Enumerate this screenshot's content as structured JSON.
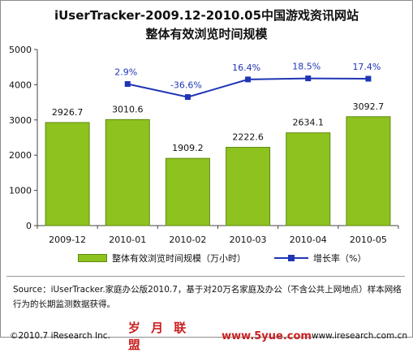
{
  "title_line1": "iUserTracker-2009.12-2010.05中国游戏资讯网站",
  "title_line2": "整体有效浏览时间规模",
  "chart_data": {
    "type": "bar",
    "categories": [
      "2009-12",
      "2010-01",
      "2010-02",
      "2010-03",
      "2010-04",
      "2010-05"
    ],
    "series": [
      {
        "name": "整体有效浏览时间规模（万小时）",
        "type": "bar",
        "axis": "left",
        "values": [
          2926.7,
          3010.6,
          1909.2,
          2222.6,
          2634.1,
          3092.7
        ],
        "labels": [
          "2926.7",
          "3010.6",
          "1909.2",
          "2222.6",
          "2634.1",
          "3092.7"
        ]
      },
      {
        "name": "增长率（%）",
        "type": "line",
        "growth_percent": [
          null,
          2.9,
          -36.6,
          16.4,
          18.5,
          17.4
        ],
        "labels": [
          "",
          "2.9%",
          "-36.6%",
          "16.4%",
          "18.5%",
          "17.4%"
        ],
        "plotted_left_axis_values": [
          null,
          4020,
          3650,
          4150,
          4180,
          4170
        ]
      }
    ],
    "ylim": [
      0,
      5000
    ],
    "yticks": [
      0,
      1000,
      2000,
      3000,
      4000,
      5000
    ],
    "grid": false,
    "legend_position": "bottom",
    "colors": {
      "bar": "#8dc21f",
      "bar_edge": "#5f8a10",
      "line": "#1f35b5",
      "growth_label": "#1f35b5"
    }
  },
  "legend": {
    "bar_label": "整体有效浏览时间规模（万小时）",
    "line_label": "增长率（%）"
  },
  "source_text": "Source：iUserTracker.家庭办公版2010.7，基于对20万名家庭及办公（不含公共上网地点）样本网络行为的长期监测数据获得。",
  "footer": {
    "copyright": "©2010.7 iResearch Inc.",
    "watermark": "岁 月 联 盟",
    "watermark_url": "www.5yue.com",
    "url": "www.iresearch.com.cn"
  }
}
